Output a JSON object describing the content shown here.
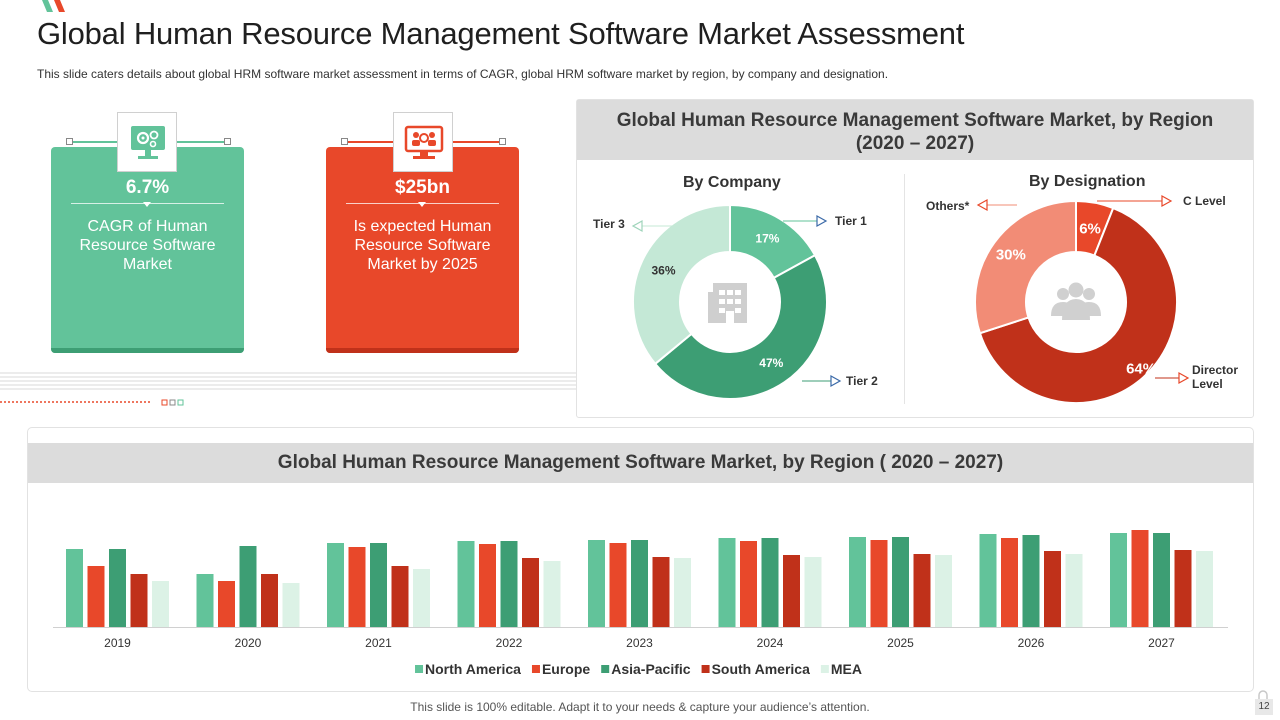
{
  "header": {
    "title": "Global Human Resource Management Software Market Assessment",
    "subtitle": "This slide caters details about global HRM software market assessment in terms of CAGR, global HRM software market by region, by company and designation."
  },
  "stats": [
    {
      "value": "6.7%",
      "description": "CAGR of Human Resource Software Market",
      "color": "#62c39a",
      "icon": "computer-gears-icon"
    },
    {
      "value": "$25bn",
      "description": "Is expected Human Resource Software Market by 2025",
      "color": "#e8482a",
      "icon": "monitor-people-icon"
    }
  ],
  "colors": {
    "green_light": "#62c39a",
    "green_dark": "#3d9e74",
    "green_pale": "#c4e8d6",
    "red": "#e8482a",
    "red_dark": "#c0311a",
    "salmon": "#f28c76",
    "mea": "#dcf2e6"
  },
  "pie_panel": {
    "title_line1": "Global Human Resource Management Software Market, by Region",
    "title_line2": "(2020 – 2027)"
  },
  "bar_panel": {
    "title": "Global Human Resource Management Software Market, by Region ( 2020 – 2027)"
  },
  "chart_data": [
    {
      "type": "pie",
      "title": "By Company",
      "slices": [
        {
          "label": "Tier 1",
          "value": 17,
          "value_label": "17%"
        },
        {
          "label": "Tier 2",
          "value": 47,
          "value_label": "47%"
        },
        {
          "label": "Tier 3",
          "value": 36,
          "value_label": "36%"
        }
      ],
      "center_icon": "building-icon"
    },
    {
      "type": "pie",
      "title": "By Designation",
      "slices": [
        {
          "label": "C Level",
          "value": 6,
          "value_label": "6%"
        },
        {
          "label": "Director Level",
          "value": 64,
          "value_label": "64%"
        },
        {
          "label": "Others*",
          "value": 30,
          "value_label": "30%"
        }
      ],
      "center_icon": "people-group-icon"
    },
    {
      "type": "bar",
      "categories": [
        "2019",
        "2020",
        "2021",
        "2022",
        "2023",
        "2024",
        "2025",
        "2026",
        "2027"
      ],
      "series": [
        {
          "name": "North America",
          "values": [
            78,
            53,
            84,
            86,
            87,
            89,
            90,
            93,
            94
          ]
        },
        {
          "name": "Europe",
          "values": [
            61,
            46,
            80,
            83,
            84,
            86,
            87,
            89,
            97
          ]
        },
        {
          "name": "Asia-Pacific",
          "values": [
            78,
            81,
            84,
            86,
            87,
            89,
            90,
            92,
            94
          ]
        },
        {
          "name": "South America",
          "values": [
            53,
            53,
            61,
            69,
            70,
            72,
            73,
            76,
            77
          ]
        },
        {
          "name": "MEA",
          "values": [
            46,
            44,
            58,
            66,
            69,
            70,
            72,
            73,
            76
          ]
        }
      ],
      "ylim": [
        0,
        100
      ],
      "legend_position": "bottom"
    }
  ],
  "footer": {
    "text": "This slide is 100% editable. Adapt it to your needs & capture your audience’s attention.",
    "page_number": "12"
  }
}
